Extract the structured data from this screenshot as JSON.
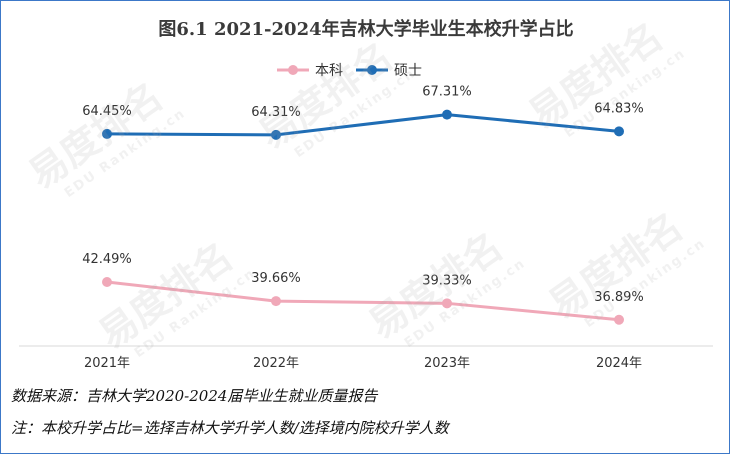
{
  "chart_data": {
    "type": "line",
    "title": "图6.1  2021-2024年吉林大学毕业生本校升学占比",
    "categories": [
      "2021年",
      "2022年",
      "2023年",
      "2024年"
    ],
    "series": [
      {
        "name": "本科",
        "values": [
          42.49,
          39.66,
          39.33,
          36.89
        ],
        "labels": [
          "42.49%",
          "39.66%",
          "39.33%",
          "36.89%"
        ],
        "color": "#f0a8b8"
      },
      {
        "name": "硕士",
        "values": [
          64.45,
          64.31,
          67.31,
          64.83
        ],
        "labels": [
          "64.45%",
          "64.31%",
          "67.31%",
          "64.83%"
        ],
        "color": "#1f6db5"
      }
    ],
    "ylim": [
      33,
      72
    ],
    "grid": false,
    "legend_position": "top-center",
    "xlabel": "",
    "ylabel": ""
  },
  "notes": {
    "source": "数据来源：吉林大学2020-2024届毕业生就业质量报告",
    "formula": "注：本校升学占比=选择吉林大学升学人数/选择境内院校升学人数"
  },
  "watermark": {
    "text": "易度排名",
    "sub": "EDU Ranking.cn"
  }
}
